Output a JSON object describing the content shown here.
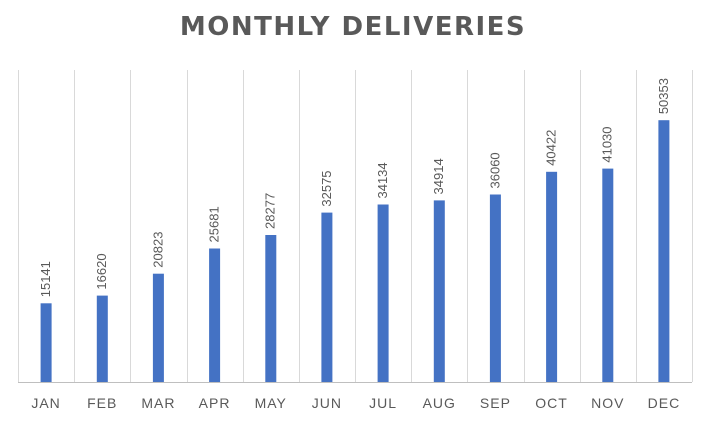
{
  "chart_data": {
    "type": "bar",
    "title": "MONTHLY DELIVERIES",
    "xlabel": "",
    "ylabel": "",
    "categories": [
      "JAN",
      "FEB",
      "MAR",
      "APR",
      "MAY",
      "JUN",
      "JUL",
      "AUG",
      "SEP",
      "OCT",
      "NOV",
      "DEC"
    ],
    "values": [
      15141,
      16620,
      20823,
      25681,
      28277,
      32575,
      34134,
      34914,
      36060,
      40422,
      41030,
      50353
    ],
    "ylim": [
      0,
      60000
    ],
    "grid": "vertical",
    "legend": "none",
    "data_labels": true,
    "bar_color": "#4472c4"
  }
}
